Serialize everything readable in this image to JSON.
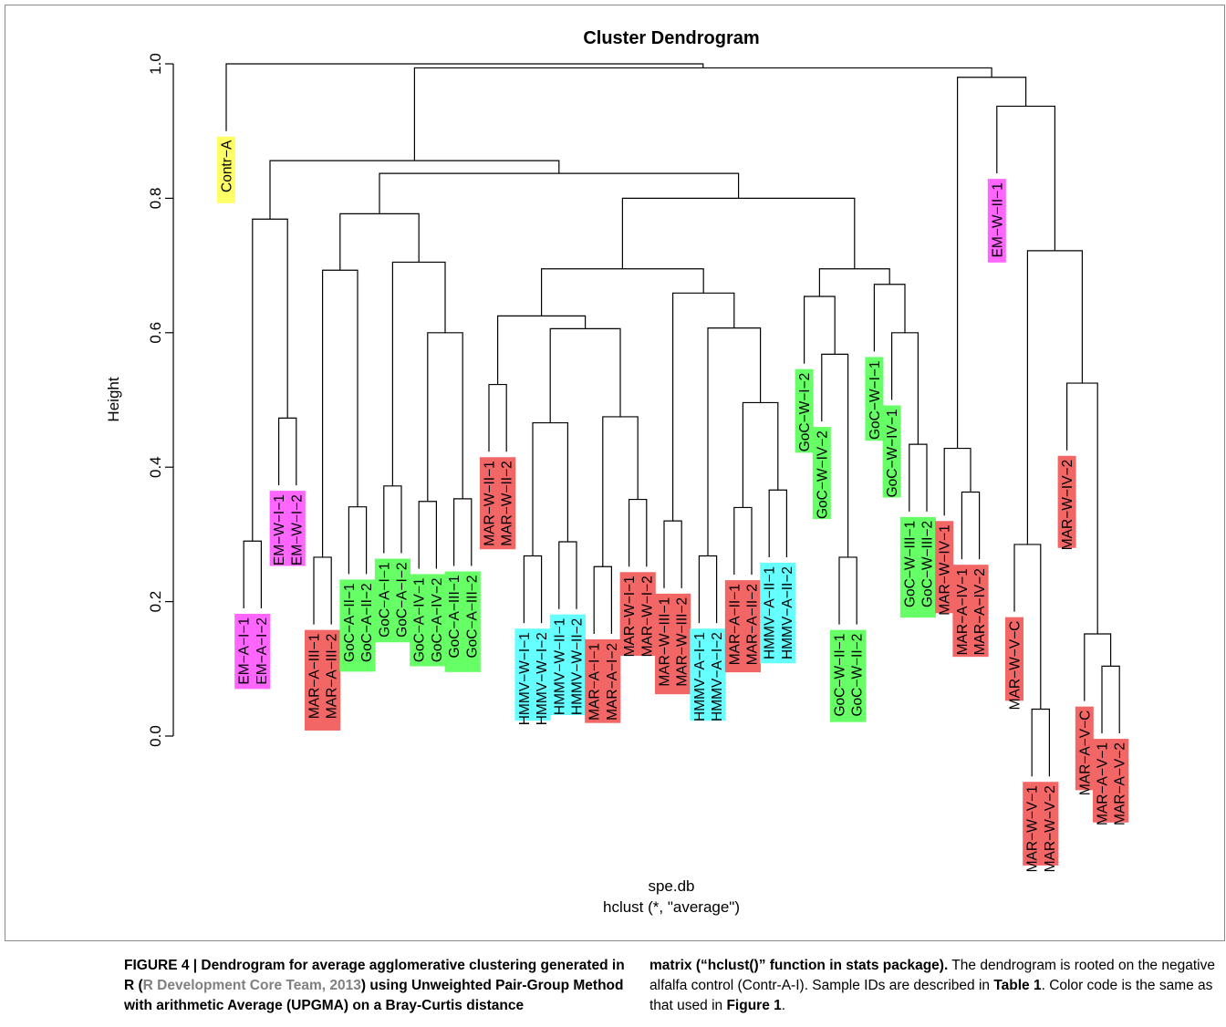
{
  "chart_data": {
    "type": "dendrogram",
    "title": "Cluster Dendrogram",
    "ylabel": "Height",
    "xlabel": "spe.db",
    "sublabel": "hclust (*, \"average\")",
    "ylim": [
      0,
      1.0
    ],
    "yticks": [
      "0.0",
      "0.2",
      "0.4",
      "0.6",
      "0.8",
      "1.0"
    ],
    "colors": {
      "yellow": "#ffff66",
      "magenta": "#ff66ff",
      "red": "#f26666",
      "green": "#66ff66",
      "cyan": "#66ffff"
    },
    "leaves": [
      {
        "label": "Contr−A",
        "color": "yellow"
      },
      {
        "label": "EM−A−I−1",
        "color": "magenta"
      },
      {
        "label": "EM−A−I−2",
        "color": "magenta"
      },
      {
        "label": "EM−W−I−1",
        "color": "magenta"
      },
      {
        "label": "EM−W−I−2",
        "color": "magenta"
      },
      {
        "label": "MAR−A−III−1",
        "color": "red"
      },
      {
        "label": "MAR−A−III−2",
        "color": "red"
      },
      {
        "label": "GoC−A−II−1",
        "color": "green"
      },
      {
        "label": "GoC−A−II−2",
        "color": "green"
      },
      {
        "label": "GoC−A−I−1",
        "color": "green"
      },
      {
        "label": "GoC−A−I−2",
        "color": "green"
      },
      {
        "label": "GoC−A−IV−1",
        "color": "green"
      },
      {
        "label": "GoC−A−IV−2",
        "color": "green"
      },
      {
        "label": "GoC−A−III−1",
        "color": "green"
      },
      {
        "label": "GoC−A−III−2",
        "color": "green"
      },
      {
        "label": "MAR−W−II−1",
        "color": "red"
      },
      {
        "label": "MAR−W−II−2",
        "color": "red"
      },
      {
        "label": "HMMV−W−I−1",
        "color": "cyan"
      },
      {
        "label": "HMMV−W−I−2",
        "color": "cyan"
      },
      {
        "label": "HMMV−W−II−1",
        "color": "cyan"
      },
      {
        "label": "HMMV−W−II−2",
        "color": "cyan"
      },
      {
        "label": "MAR−A−I−1",
        "color": "red"
      },
      {
        "label": "MAR−A−I−2",
        "color": "red"
      },
      {
        "label": "MAR−W−I−1",
        "color": "red"
      },
      {
        "label": "MAR−W−I−2",
        "color": "red"
      },
      {
        "label": "MAR−W−III−1",
        "color": "red"
      },
      {
        "label": "MAR−W−III−2",
        "color": "red"
      },
      {
        "label": "HMMV−A−I−1",
        "color": "cyan"
      },
      {
        "label": "HMMV−A−I−2",
        "color": "cyan"
      },
      {
        "label": "MAR−A−II−1",
        "color": "red"
      },
      {
        "label": "MAR−A−II−2",
        "color": "red"
      },
      {
        "label": "HMMV−A−II−1",
        "color": "cyan"
      },
      {
        "label": "HMMV−A−II−2",
        "color": "cyan"
      },
      {
        "label": "GoC−W−I−2",
        "color": "green"
      },
      {
        "label": "GoC−W−IV−2",
        "color": "green"
      },
      {
        "label": "GoC−W−II−1",
        "color": "green"
      },
      {
        "label": "GoC−W−II−2",
        "color": "green"
      },
      {
        "label": "GoC−W−I−1",
        "color": "green"
      },
      {
        "label": "GoC−W−IV−1",
        "color": "green"
      },
      {
        "label": "GoC−W−III−1",
        "color": "green"
      },
      {
        "label": "GoC−W−III−2",
        "color": "green"
      },
      {
        "label": "MAR−W−IV−1",
        "color": "red"
      },
      {
        "label": "MAR−A−IV−1",
        "color": "red"
      },
      {
        "label": "MAR−A−IV−2",
        "color": "red"
      },
      {
        "label": "EM−W−II−1",
        "color": "magenta"
      },
      {
        "label": "MAR−W−V−C",
        "color": "red"
      },
      {
        "label": "MAR−W−V−1",
        "color": "red"
      },
      {
        "label": "MAR−W−V−2",
        "color": "red"
      },
      {
        "label": "MAR−W−IV−2",
        "color": "red"
      },
      {
        "label": "MAR−A−V−C",
        "color": "red"
      },
      {
        "label": "MAR−A−V−1",
        "color": "red"
      },
      {
        "label": "MAR−A−V−2",
        "color": "red"
      }
    ],
    "merges": [
      [
        1,
        2,
        0.29
      ],
      [
        3,
        4,
        0.473
      ],
      [
        -1,
        -2,
        0.769
      ],
      [
        5,
        6,
        0.266
      ],
      [
        7,
        8,
        0.341
      ],
      [
        -4,
        -5,
        0.693
      ],
      [
        9,
        10,
        0.372
      ],
      [
        11,
        12,
        0.349
      ],
      [
        13,
        14,
        0.353
      ],
      [
        -8,
        -9,
        0.6
      ],
      [
        -7,
        -10,
        0.705
      ],
      [
        -6,
        -11,
        0.777
      ],
      [
        15,
        16,
        0.523
      ],
      [
        17,
        18,
        0.268
      ],
      [
        19,
        20,
        0.289
      ],
      [
        -14,
        -15,
        0.466
      ],
      [
        21,
        22,
        0.252
      ],
      [
        23,
        24,
        0.352
      ],
      [
        -17,
        -18,
        0.475
      ],
      [
        -16,
        -19,
        0.606
      ],
      [
        -13,
        -20,
        0.625
      ],
      [
        25,
        26,
        0.32
      ],
      [
        27,
        28,
        0.268
      ],
      [
        29,
        30,
        0.34
      ],
      [
        31,
        32,
        0.366
      ],
      [
        -24,
        -25,
        0.496
      ],
      [
        -23,
        -26,
        0.607
      ],
      [
        -22,
        -27,
        0.659
      ],
      [
        -21,
        -28,
        0.695
      ],
      [
        35,
        36,
        0.266
      ],
      [
        34,
        -30,
        0.568
      ],
      [
        33,
        -31,
        0.654
      ],
      [
        39,
        40,
        0.434
      ],
      [
        38,
        -33,
        0.6
      ],
      [
        37,
        -34,
        0.672
      ],
      [
        -32,
        -35,
        0.695
      ],
      [
        -29,
        -36,
        0.8
      ],
      [
        -12,
        -37,
        0.837
      ],
      [
        -3,
        -38,
        0.856
      ],
      [
        42,
        43,
        0.363
      ],
      [
        41,
        -40,
        0.428
      ],
      [
        46,
        47,
        0.04
      ],
      [
        45,
        -42,
        0.285
      ],
      [
        50,
        51,
        0.104
      ],
      [
        49,
        -44,
        0.152
      ],
      [
        48,
        -45,
        0.525
      ],
      [
        -43,
        -46,
        0.722
      ],
      [
        44,
        -47,
        0.937
      ],
      [
        -41,
        -48,
        0.98
      ],
      [
        -39,
        -49,
        0.994
      ],
      [
        0,
        -50,
        1.0
      ]
    ]
  },
  "caption": {
    "left_bold_1": "FIGURE 4 | Dendrogram for average agglomerative clustering generated in R (",
    "left_ref": "R Development Core Team, 2013",
    "left_bold_2": ") using Unweighted Pair-Group Method with arithmetic Average (UPGMA) on a Bray-Curtis distance",
    "right_bold": "matrix (“hclust()” function in stats package).",
    "right_text_1": " The dendrogram is rooted on the negative alfalfa control (Contr-A-I). Sample IDs are described in ",
    "right_table_ref": "Table 1",
    "right_text_2": ". Color code is the same as that used in ",
    "right_figure_ref": "Figure 1",
    "right_text_3": "."
  }
}
